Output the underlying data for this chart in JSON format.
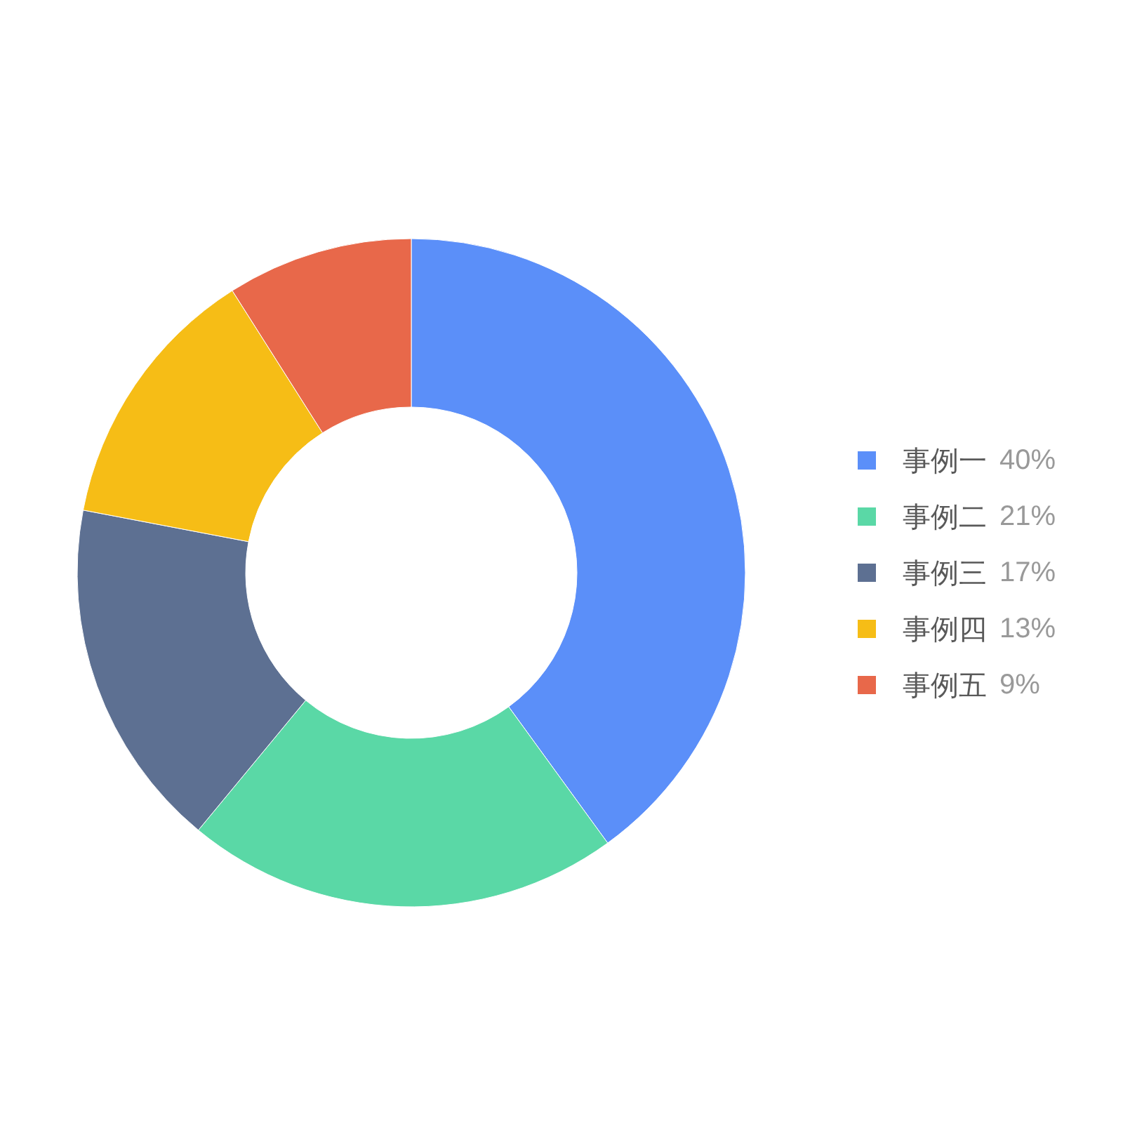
{
  "chart_data": {
    "type": "donut",
    "categories": [
      "事例一",
      "事例二",
      "事例三",
      "事例四",
      "事例五"
    ],
    "values": [
      40,
      21,
      17,
      13,
      9
    ],
    "colors": [
      "#5b8ff9",
      "#5ad8a6",
      "#5d7092",
      "#f6bd16",
      "#e8684a"
    ],
    "value_labels": [
      "40%",
      "21%",
      "17%",
      "13%",
      "9%"
    ],
    "legend": "right"
  }
}
